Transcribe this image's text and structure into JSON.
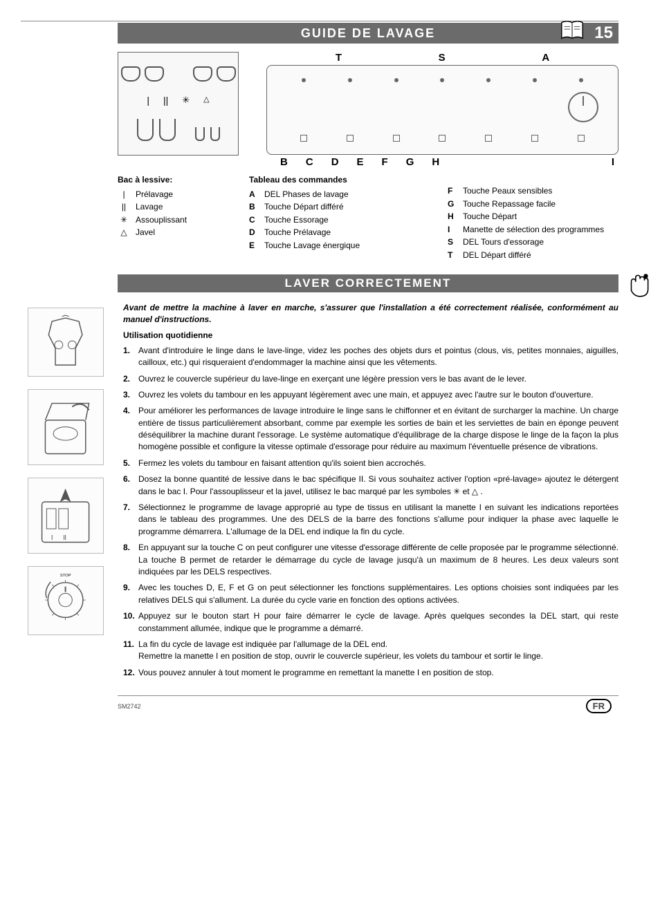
{
  "page": {
    "header_title": "GUIDE DE LAVAGE",
    "page_number": "15",
    "section2_title": "LAVER CORRECTEMENT",
    "doc_code": "SM2742",
    "lang_badge": "FR"
  },
  "colors": {
    "bar_bg": "#6b6b6b",
    "bar_fg": "#ffffff",
    "text": "#000000",
    "rule": "#888888"
  },
  "panel_labels": {
    "top": [
      "T",
      "S",
      "A"
    ],
    "bottom": [
      "B",
      "C",
      "D",
      "E",
      "F",
      "G",
      "H",
      "I"
    ]
  },
  "dispenser": {
    "title": "Bac à lessive:",
    "items": [
      {
        "sym": "|",
        "label": "Prélavage"
      },
      {
        "sym": "||",
        "label": "Lavage"
      },
      {
        "sym": "✳",
        "label": "Assouplissant"
      },
      {
        "sym": "△",
        "label": "Javel"
      }
    ]
  },
  "commands": {
    "title": "Tableau des commandes",
    "col1": [
      {
        "key": "A",
        "label": "DEL Phases de lavage"
      },
      {
        "key": "B",
        "label": "Touche Départ différé"
      },
      {
        "key": "C",
        "label": "Touche Essorage"
      },
      {
        "key": "D",
        "label": "Touche Prélavage"
      },
      {
        "key": "E",
        "label": "Touche Lavage énergique"
      }
    ],
    "col2": [
      {
        "key": "F",
        "label": "Touche Peaux sensibles"
      },
      {
        "key": "G",
        "label": "Touche Repassage facile"
      },
      {
        "key": "H",
        "label": "Touche Départ"
      },
      {
        "key": "I",
        "label": "Manette de sélection des programmes"
      },
      {
        "key": "S",
        "label": "DEL Tours d'essorage"
      },
      {
        "key": "T",
        "label": "DEL Départ différé"
      }
    ]
  },
  "body": {
    "intro": "Avant de mettre la machine à laver en marche, s'assurer que l'installation a été correctement réalisée, conformément au manuel d'instructions.",
    "subhead": "Utilisation quotidienne",
    "steps": [
      "Avant d'introduire le linge dans le lave-linge, videz les poches des objets durs et pointus (clous, vis, petites monnaies, aiguilles, cailloux, etc.) qui risqueraient d'endommager la machine ainsi que les vêtements.",
      "Ouvrez le couvercle supérieur du lave-linge en exerçant une légère pression vers le bas avant de le lever.",
      "Ouvrez les volets du tambour en les appuyant légèrement avec une main, et appuyez avec l'autre sur le bouton d'ouverture.",
      "Pour améliorer les performances de lavage introduire le linge sans le chiffonner et en évitant de surcharger la machine. Un charge entière de tissus particulièrement absorbant, comme par exemple les sorties de bain et les serviettes de bain en éponge peuvent déséquilibrer la machine durant l'essorage. Le système automatique d'équilibrage de la charge dispose le linge de la façon la plus homogène possible et configure la vitesse optimale d'essorage pour réduire au maximum l'éventuelle présence de vibrations.",
      "Fermez les volets du tambour en faisant attention qu'ils soient bien accrochés.",
      "Dosez la bonne quantité de lessive dans le bac spécifique II. Si vous souhaitez activer l'option «pré-lavage» ajoutez le détergent dans le bac I.  Pour l'assouplisseur et la javel, utilisez le bac marqué par les symboles ✳ et △ .",
      "Sélectionnez le programme de lavage approprié au type de tissus en utilisant la manette I en suivant les indications reportées dans le tableau des programmes. Une des DELS de la barre des fonctions s'allume pour indiquer la phase avec laquelle le programme démarrera. L'allumage de la DEL end indique la fin du cycle.",
      "En appuyant sur la touche C on peut configurer une vitesse d'essorage différente de celle proposée par le programme sélectionné.  La touche B permet de retarder le démarrage du cycle de lavage jusqu'à un maximum de 8 heures. Les deux valeurs sont indiquées par les DELS respectives.",
      "Avec les touches D, E, F et G on peut sélectionner les fonctions supplémentaires. Les options choisies sont indiquées par les relatives DELS qui s'allument. La durée du cycle varie en fonction des options activées.",
      "Appuyez sur le bouton start H pour faire démarrer le cycle de lavage. Après quelques secondes la DEL start, qui reste constamment allumée, indique que le programme a démarré.",
      "La fin du cycle de lavage est indiquée par l'allumage de la DEL end.\nRemettre la manette I en position de stop, ouvrir le couvercle supérieur, les volets du tambour et sortir le linge.",
      "Vous pouvez annuler à tout moment le programme en remettant la manette I en position de stop."
    ]
  }
}
